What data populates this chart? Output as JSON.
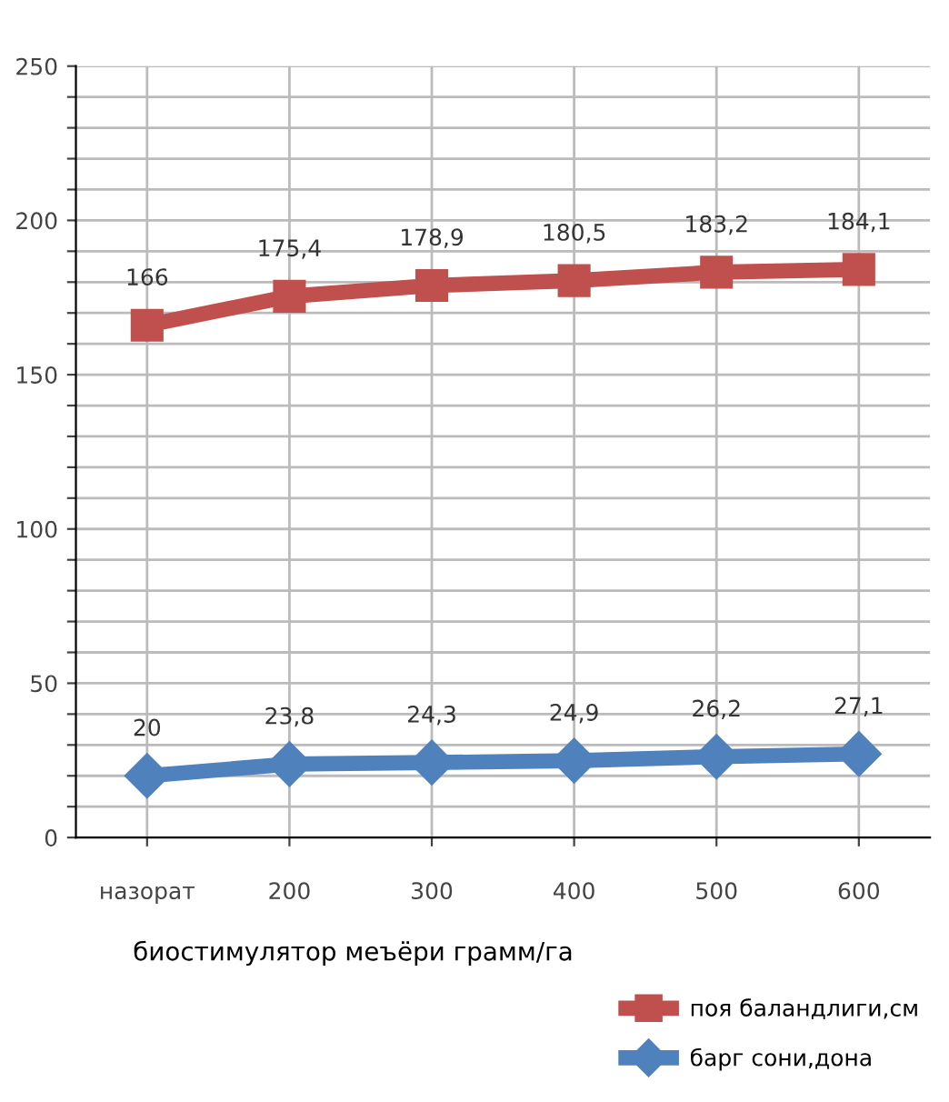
{
  "chart_data": {
    "type": "line",
    "xlabel": "биостимулятор меъёри грамм/га",
    "categories": [
      "назорат",
      "200",
      "300",
      "400",
      "500",
      "600"
    ],
    "series": [
      {
        "name": "поя баландлиги,см",
        "color": "#c0504d",
        "marker": "square",
        "values": [
          166,
          175.4,
          178.9,
          180.5,
          183.2,
          184.1
        ],
        "value_labels": [
          "166",
          "175,4",
          "178,9",
          "180,5",
          "183,2",
          "184,1"
        ]
      },
      {
        "name": "барг сони,дона",
        "color": "#4f81bd",
        "marker": "diamond",
        "values": [
          20,
          23.8,
          24.3,
          24.9,
          26.2,
          27.1
        ],
        "value_labels": [
          "20",
          "23,8",
          "24,3",
          "24,9",
          "26,2",
          "27,1"
        ]
      }
    ],
    "ylim": [
      0,
      250
    ],
    "yticks": [
      0,
      {
        "value": 10,
        "label": null
      },
      {
        "value": 20,
        "label": null
      },
      {
        "value": 30,
        "label": null
      },
      {
        "value": 40,
        "label": null
      },
      50,
      {
        "value": 60,
        "label": null
      },
      {
        "value": 70,
        "label": null
      },
      {
        "value": 80,
        "label": null
      },
      {
        "value": 90,
        "label": null
      },
      100,
      {
        "value": 110,
        "label": null
      },
      {
        "value": 120,
        "label": null
      },
      {
        "value": 130,
        "label": null
      },
      {
        "value": 140,
        "label": null
      },
      150,
      {
        "value": 160,
        "label": null
      },
      {
        "value": 170,
        "label": null
      },
      {
        "value": 180,
        "label": null
      },
      {
        "value": 190,
        "label": null
      },
      200,
      {
        "value": 210,
        "label": null
      },
      {
        "value": 220,
        "label": null
      },
      {
        "value": 230,
        "label": null
      },
      {
        "value": 240,
        "label": null
      },
      250
    ],
    "grid": true,
    "legend": "bottom right"
  }
}
